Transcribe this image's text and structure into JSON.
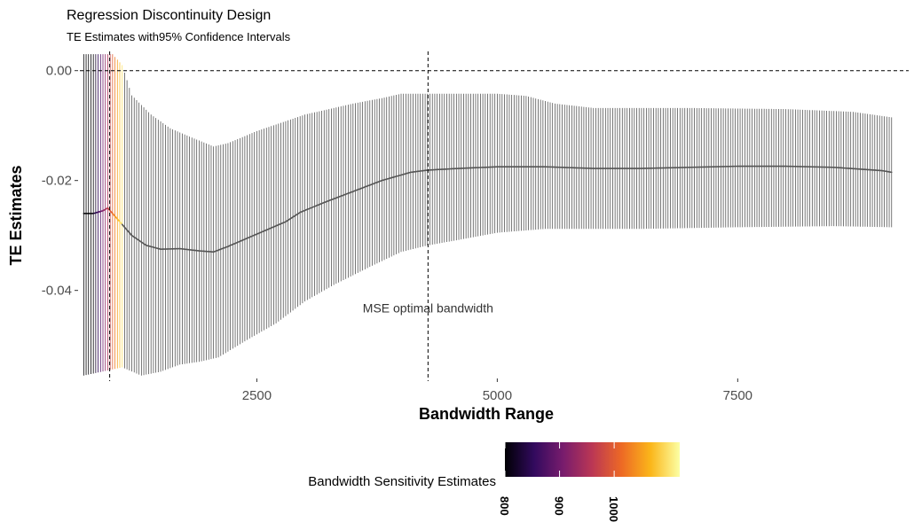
{
  "chart_data": {
    "type": "line",
    "title": "Regression Discontinuity Design",
    "subtitle": "TE Estimates with95% Confidence Intervals",
    "xlabel": "Bandwidth Range",
    "ylabel": "TE Estimates",
    "xlim": [
      660,
      9130
    ],
    "ylim": [
      -0.0557,
      0.0035
    ],
    "x_ticks": [
      2500,
      5000,
      7500
    ],
    "x_tick_labels": [
      "2500",
      "5000",
      "7500"
    ],
    "y_ticks": [
      0.0,
      -0.02,
      -0.04
    ],
    "y_tick_labels": [
      "0.00",
      "-0.02",
      "-0.04"
    ],
    "grid": false,
    "reference_lines": {
      "hline_y": 0.0,
      "vlines_x": [
        970,
        4280
      ]
    },
    "annotation": {
      "text": "MSE optimal bandwidth",
      "x": 4280,
      "y": -0.0432
    },
    "bandwidth_step": 25,
    "highlight_until_x": 1100,
    "estimate_points": [
      {
        "x": 700,
        "y": -0.026
      },
      {
        "x": 800,
        "y": -0.026
      },
      {
        "x": 900,
        "y": -0.0255
      },
      {
        "x": 950,
        "y": -0.025
      },
      {
        "x": 1000,
        "y": -0.026
      },
      {
        "x": 1050,
        "y": -0.027
      },
      {
        "x": 1100,
        "y": -0.028
      },
      {
        "x": 1200,
        "y": -0.03
      },
      {
        "x": 1350,
        "y": -0.0318
      },
      {
        "x": 1500,
        "y": -0.0325
      },
      {
        "x": 1700,
        "y": -0.0324
      },
      {
        "x": 1900,
        "y": -0.0328
      },
      {
        "x": 2050,
        "y": -0.033
      },
      {
        "x": 2200,
        "y": -0.032
      },
      {
        "x": 2400,
        "y": -0.0305
      },
      {
        "x": 2600,
        "y": -0.029
      },
      {
        "x": 2800,
        "y": -0.0275
      },
      {
        "x": 2950,
        "y": -0.0258
      },
      {
        "x": 3200,
        "y": -0.024
      },
      {
        "x": 3500,
        "y": -0.022
      },
      {
        "x": 3800,
        "y": -0.02
      },
      {
        "x": 4100,
        "y": -0.0185
      },
      {
        "x": 4280,
        "y": -0.0181
      },
      {
        "x": 4600,
        "y": -0.0178
      },
      {
        "x": 5000,
        "y": -0.0175
      },
      {
        "x": 5500,
        "y": -0.0175
      },
      {
        "x": 6000,
        "y": -0.0178
      },
      {
        "x": 6500,
        "y": -0.0178
      },
      {
        "x": 7000,
        "y": -0.0176
      },
      {
        "x": 7500,
        "y": -0.0174
      },
      {
        "x": 8000,
        "y": -0.0174
      },
      {
        "x": 8500,
        "y": -0.0176
      },
      {
        "x": 9000,
        "y": -0.0182
      },
      {
        "x": 9100,
        "y": -0.0185
      }
    ],
    "ci_upper_points": [
      {
        "x": 700,
        "y": 0.003
      },
      {
        "x": 1000,
        "y": 0.003
      },
      {
        "x": 1100,
        "y": 0.001
      },
      {
        "x": 1200,
        "y": -0.0045
      },
      {
        "x": 1400,
        "y": -0.008
      },
      {
        "x": 1600,
        "y": -0.0105
      },
      {
        "x": 1800,
        "y": -0.012
      },
      {
        "x": 2050,
        "y": -0.0138
      },
      {
        "x": 2200,
        "y": -0.0132
      },
      {
        "x": 2500,
        "y": -0.011
      },
      {
        "x": 2800,
        "y": -0.0092
      },
      {
        "x": 3000,
        "y": -0.008
      },
      {
        "x": 3200,
        "y": -0.0072
      },
      {
        "x": 3500,
        "y": -0.006
      },
      {
        "x": 3800,
        "y": -0.005
      },
      {
        "x": 4000,
        "y": -0.0042
      },
      {
        "x": 4280,
        "y": -0.0042
      },
      {
        "x": 5000,
        "y": -0.0042
      },
      {
        "x": 5300,
        "y": -0.0046
      },
      {
        "x": 5600,
        "y": -0.006
      },
      {
        "x": 6000,
        "y": -0.0068
      },
      {
        "x": 7000,
        "y": -0.0068
      },
      {
        "x": 8000,
        "y": -0.007
      },
      {
        "x": 8700,
        "y": -0.0075
      },
      {
        "x": 9100,
        "y": -0.0085
      }
    ],
    "ci_lower_points": [
      {
        "x": 700,
        "y": -0.0555
      },
      {
        "x": 1100,
        "y": -0.054
      },
      {
        "x": 1300,
        "y": -0.0555
      },
      {
        "x": 1500,
        "y": -0.0548
      },
      {
        "x": 1700,
        "y": -0.0535
      },
      {
        "x": 1900,
        "y": -0.053
      },
      {
        "x": 2100,
        "y": -0.0522
      },
      {
        "x": 2400,
        "y": -0.049
      },
      {
        "x": 2700,
        "y": -0.046
      },
      {
        "x": 3000,
        "y": -0.042
      },
      {
        "x": 3300,
        "y": -0.039
      },
      {
        "x": 3700,
        "y": -0.0355
      },
      {
        "x": 4000,
        "y": -0.033
      },
      {
        "x": 4280,
        "y": -0.0318
      },
      {
        "x": 4600,
        "y": -0.0308
      },
      {
        "x": 5000,
        "y": -0.0295
      },
      {
        "x": 5500,
        "y": -0.0288
      },
      {
        "x": 6500,
        "y": -0.0288
      },
      {
        "x": 7500,
        "y": -0.0285
      },
      {
        "x": 8500,
        "y": -0.0283
      },
      {
        "x": 9100,
        "y": -0.0285
      }
    ],
    "default_series_color": "#555555",
    "legend": {
      "title": "Bandwidth Sensitivity Estimates",
      "placement": "bottom",
      "range": [
        800,
        1120
      ],
      "ticks": [
        800,
        900,
        1000
      ],
      "tick_labels": [
        "800",
        "900",
        "1000"
      ],
      "palette": [
        "#000004",
        "#320A5E",
        "#781C6D",
        "#BB3754",
        "#ED6925",
        "#FBB61A",
        "#FCFFA4"
      ]
    }
  }
}
